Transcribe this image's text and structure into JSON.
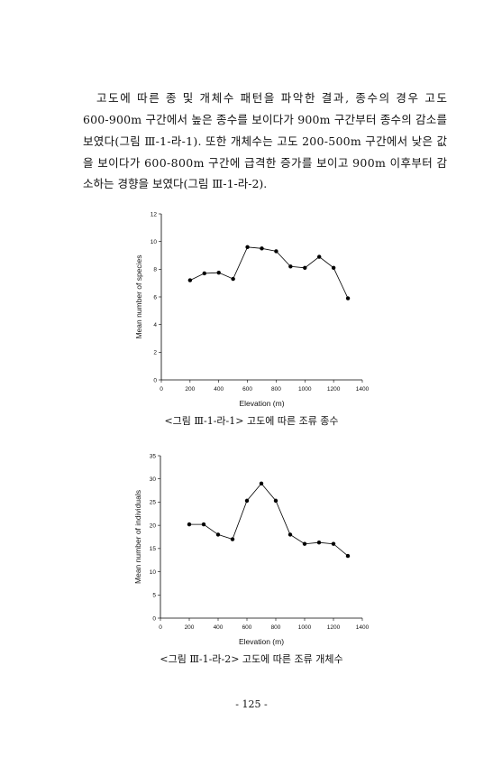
{
  "paragraph_lines": [
    "고도에 따른 종 및 개체수 패턴을 파악한 결과, 종수의 경우 고도",
    "600-900m 구간에서 높은 종수를 보이다가 900m 구간부터 종수의 감소를",
    "보였다(그림 Ⅲ-1-라-1). 또한 개체수는 고도 200-500m 구간에서 낮은 값",
    "을 보이다가 600-800m 구간에 급격한 증가를 보이고 900m 이후부터 감",
    "소하는 경향을 보였다(그림 Ⅲ-1-라-2)."
  ],
  "chart_data": [
    {
      "type": "line",
      "caption": "<그림 Ⅲ-1-라-1> 고도에 따른 조류 종수",
      "x_label": "Elevation (m)",
      "y_label": "Mean number of species",
      "x": [
        200,
        300,
        400,
        500,
        600,
        700,
        800,
        900,
        1000,
        1100,
        1200,
        1300
      ],
      "values": [
        7.2,
        7.7,
        7.75,
        7.3,
        9.6,
        9.5,
        9.3,
        8.2,
        8.1,
        8.9,
        8.1,
        5.9
      ],
      "xlim": [
        0,
        1400
      ],
      "xticks": [
        0,
        200,
        400,
        600,
        800,
        1000,
        1200,
        1400
      ],
      "ylim": [
        0,
        12
      ],
      "yticks": [
        0,
        2,
        4,
        6,
        8,
        10,
        12
      ],
      "color": "#000000"
    },
    {
      "type": "line",
      "caption": "<그림 Ⅲ-1-라-2> 고도에 따른 조류 개체수",
      "x_label": "Elevation (m)",
      "y_label": "Mean number of individuals",
      "x": [
        200,
        300,
        400,
        500,
        600,
        700,
        800,
        900,
        1000,
        1100,
        1200,
        1300
      ],
      "values": [
        20.2,
        20.2,
        18,
        17,
        25.3,
        29,
        25.3,
        18,
        16,
        16.3,
        16,
        13.4
      ],
      "xlim": [
        0,
        1400
      ],
      "xticks": [
        0,
        200,
        400,
        600,
        800,
        1000,
        1200,
        1400
      ],
      "ylim": [
        0,
        35
      ],
      "yticks": [
        0,
        5,
        10,
        15,
        20,
        25,
        30,
        35
      ],
      "color": "#000000"
    }
  ],
  "page_number": "- 125 -"
}
